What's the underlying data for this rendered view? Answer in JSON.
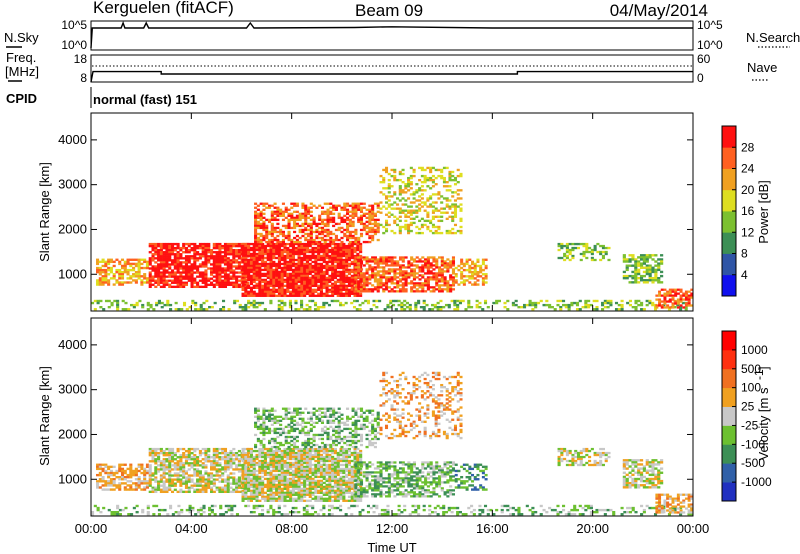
{
  "header": {
    "station": "Kerguelen (fitACF)",
    "beam": "Beam 09",
    "date": "04/May/2014"
  },
  "nsky_panel": {
    "left_label": "N.Sky",
    "right_label": "N.Search",
    "left_ticks": [
      "10^5",
      "10^0"
    ],
    "right_ticks": [
      "10^5",
      "10^0"
    ]
  },
  "freq_panel": {
    "left_label_1": "Freq.",
    "left_label_2": "[MHz]",
    "right_label": "Nave",
    "left_ticks": [
      "18",
      "8"
    ],
    "right_ticks": [
      "60",
      "0"
    ]
  },
  "cpid": {
    "label": "CPID",
    "value": "normal (fast) 151"
  },
  "chart_data": [
    {
      "type": "line",
      "name": "sky-noise",
      "x_unit": "hours UT",
      "x": [
        0.0,
        0.05,
        0.5,
        1.2,
        1.28,
        1.35,
        2.1,
        2.2,
        2.3,
        4.0,
        6.2,
        6.35,
        6.5,
        10.5,
        12.0,
        16.0,
        24.0
      ],
      "y_rel": [
        0.0,
        0.8,
        0.8,
        0.8,
        1.0,
        0.8,
        0.8,
        1.0,
        0.8,
        0.8,
        0.8,
        1.0,
        0.8,
        0.82,
        0.85,
        0.8,
        0.8
      ]
    },
    {
      "type": "line",
      "name": "frequency",
      "x_unit": "hours UT",
      "y_unit": "MHz",
      "x": [
        0.0,
        0.08,
        2.8,
        2.8,
        17.0,
        17.0,
        24.0
      ],
      "y": [
        8.0,
        12.3,
        12.3,
        11.3,
        11.3,
        12.3,
        12.3
      ]
    },
    {
      "type": "heatmap",
      "name": "power",
      "title": "",
      "xlabel": "",
      "ylabel": "Slant Range [km]",
      "x_ticks": [
        "00:00",
        "04:00",
        "08:00",
        "12:00",
        "16:00",
        "20:00",
        "00:00"
      ],
      "y_ticks": [
        "1000",
        "2000",
        "3000",
        "4000"
      ],
      "xlim": [
        0,
        24
      ],
      "ylim": [
        180,
        4600
      ],
      "colorbar": {
        "label": "Power [dB]",
        "ticks": [
          "4",
          "8",
          "12",
          "16",
          "20",
          "24",
          "28"
        ],
        "colors": [
          "#1010ee",
          "#2f55a6",
          "#3c8f55",
          "#7cc030",
          "#dede20",
          "#f0a020",
          "#ff6020",
          "#ff1010"
        ]
      },
      "regions": [
        {
          "t0": 0.0,
          "t1": 24.0,
          "r0": 200,
          "r1": 430,
          "level": 3,
          "density": 0.35
        },
        {
          "t0": 0.2,
          "t1": 2.3,
          "r0": 750,
          "r1": 1350,
          "level": 5,
          "density": 0.6
        },
        {
          "t0": 2.3,
          "t1": 6.3,
          "r0": 700,
          "r1": 1700,
          "level": 7,
          "density": 0.8
        },
        {
          "t0": 6.0,
          "t1": 10.8,
          "r0": 500,
          "r1": 1700,
          "level": 7,
          "density": 0.9
        },
        {
          "t0": 6.5,
          "t1": 11.5,
          "r0": 1700,
          "r1": 2600,
          "level": 6,
          "density": 0.55
        },
        {
          "t0": 10.5,
          "t1": 14.5,
          "r0": 600,
          "r1": 1400,
          "level": 6,
          "density": 0.7
        },
        {
          "t0": 11.5,
          "t1": 14.8,
          "r0": 1900,
          "r1": 3400,
          "level": 4,
          "density": 0.35
        },
        {
          "t0": 14.5,
          "t1": 15.8,
          "r0": 750,
          "r1": 1350,
          "level": 5,
          "density": 0.6
        },
        {
          "t0": 18.6,
          "t1": 20.7,
          "r0": 1300,
          "r1": 1700,
          "level": 3,
          "density": 0.45
        },
        {
          "t0": 21.2,
          "t1": 22.8,
          "r0": 800,
          "r1": 1450,
          "level": 3,
          "density": 0.55
        },
        {
          "t0": 22.5,
          "t1": 24.0,
          "r0": 240,
          "r1": 680,
          "level": 6,
          "density": 0.6
        }
      ]
    },
    {
      "type": "heatmap",
      "name": "velocity",
      "title": "",
      "xlabel": "Time UT",
      "ylabel": "Slant Range [km]",
      "x_ticks": [
        "00:00",
        "04:00",
        "08:00",
        "12:00",
        "16:00",
        "20:00",
        "00:00"
      ],
      "y_ticks": [
        "1000",
        "2000",
        "3000",
        "4000"
      ],
      "xlim": [
        0,
        24
      ],
      "ylim": [
        180,
        4600
      ],
      "colorbar": {
        "label": "Velocity [m s",
        "ticks": [
          "1000",
          "500",
          "100",
          "25",
          "-25",
          "-100",
          "-500",
          "-1000"
        ],
        "colors": [
          "#2030c0",
          "#3060a8",
          "#3c8f55",
          "#6cc030",
          "#c8c8c8",
          "#f0a020",
          "#f07020",
          "#ff3010",
          "#ff0000"
        ]
      },
      "regions": [
        {
          "t0": 0.0,
          "t1": 24.0,
          "r0": 200,
          "r1": 430,
          "level": 3,
          "density": 0.3
        },
        {
          "t0": 0.2,
          "t1": 2.3,
          "r0": 750,
          "r1": 1350,
          "level": 5,
          "density": 0.6
        },
        {
          "t0": 2.3,
          "t1": 6.3,
          "r0": 700,
          "r1": 1700,
          "level": 4,
          "density": 0.7
        },
        {
          "t0": 6.0,
          "t1": 10.8,
          "r0": 500,
          "r1": 1700,
          "level": 4,
          "density": 0.85
        },
        {
          "t0": 6.5,
          "t1": 11.5,
          "r0": 1700,
          "r1": 2600,
          "level": 3,
          "density": 0.45
        },
        {
          "t0": 10.5,
          "t1": 14.5,
          "r0": 600,
          "r1": 1400,
          "level": 3,
          "density": 0.6
        },
        {
          "t0": 11.5,
          "t1": 14.8,
          "r0": 1900,
          "r1": 3400,
          "level": 5,
          "density": 0.3
        },
        {
          "t0": 14.5,
          "t1": 15.8,
          "r0": 750,
          "r1": 1350,
          "level": 2,
          "density": 0.5
        },
        {
          "t0": 18.6,
          "t1": 20.7,
          "r0": 1300,
          "r1": 1700,
          "level": 4,
          "density": 0.55
        },
        {
          "t0": 21.2,
          "t1": 22.8,
          "r0": 800,
          "r1": 1450,
          "level": 4,
          "density": 0.65
        },
        {
          "t0": 22.5,
          "t1": 24.0,
          "r0": 240,
          "r1": 680,
          "level": 5,
          "density": 0.6
        }
      ]
    }
  ]
}
